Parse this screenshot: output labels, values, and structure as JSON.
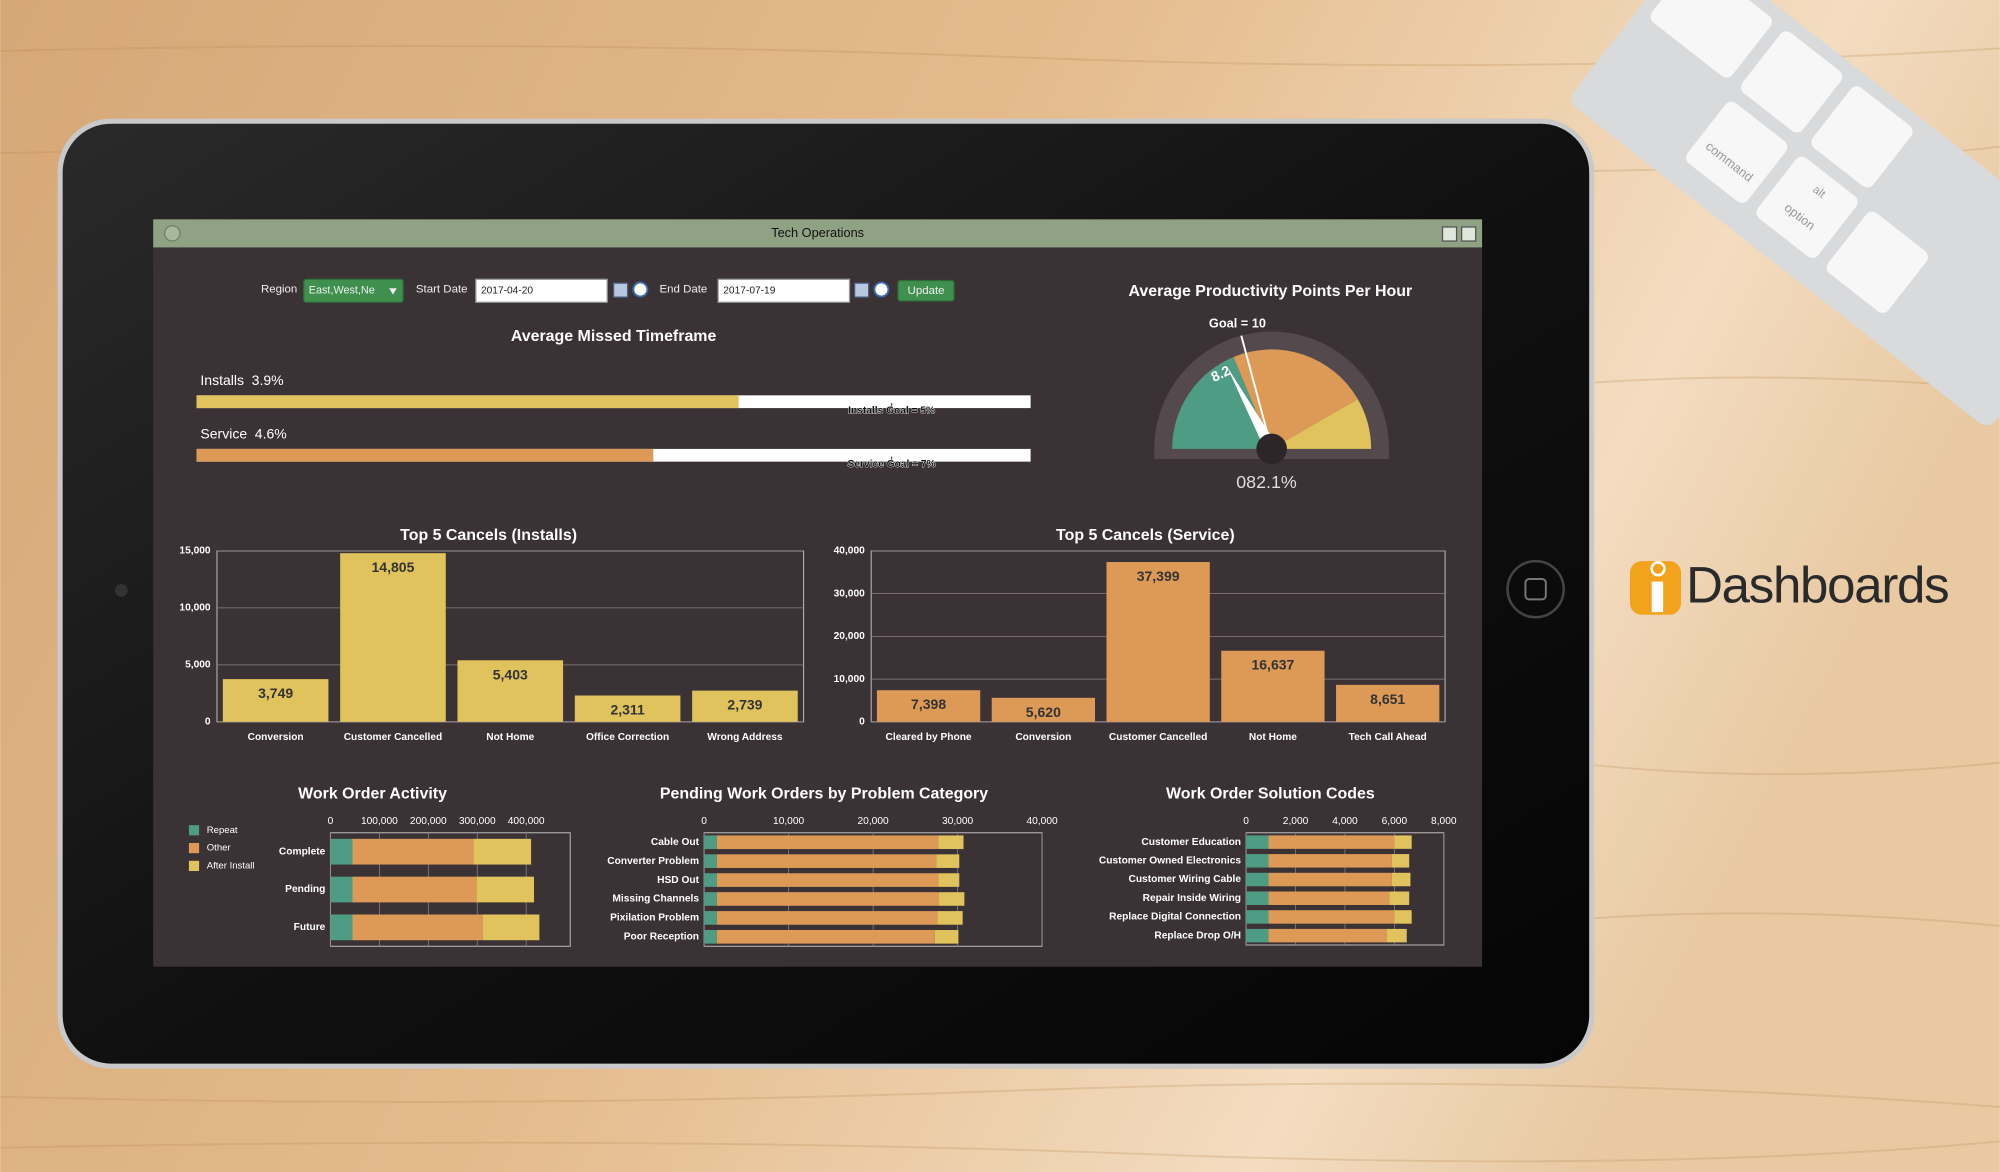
{
  "window": {
    "title": "Tech Operations"
  },
  "filters": {
    "region_label": "Region",
    "region_value": "East,West,Ne",
    "start_label": "Start Date",
    "start_value": "2017-04-20",
    "end_label": "End Date",
    "end_value": "2017-07-19",
    "button": "Update"
  },
  "brand": {
    "name": "Dashboards"
  },
  "keyboard": {
    "keys": [
      "command",
      "option",
      "alt"
    ]
  },
  "chart_data": [
    {
      "type": "bullet",
      "title": "Average Missed Timeframe",
      "categories": [
        "Installs",
        "Service"
      ],
      "values": [
        3.9,
        4.6
      ],
      "value_labels": [
        "3.9%",
        "4.6%"
      ],
      "goals": [
        5,
        7
      ],
      "goal_labels": [
        "Installs Goal = 5%",
        "Service Goal = 7%"
      ],
      "xlims": [
        [
          0,
          6
        ],
        [
          0,
          8.4
        ]
      ],
      "colors": [
        "#e0c35c",
        "#dc9a56"
      ]
    },
    {
      "type": "gauge",
      "title": "Average Productivity Points Per Hour",
      "value": 8.2,
      "goal": 10,
      "goal_label": "Goal = 10",
      "readout": "082.1%",
      "ylim": [
        0,
        24
      ],
      "bands": [
        {
          "to": 9,
          "color": "#4f9c84"
        },
        {
          "to": 20,
          "color": "#dc9a56"
        },
        {
          "to": 24,
          "color": "#e0c35c"
        }
      ]
    },
    {
      "type": "bar",
      "title": "Top 5 Cancels (Installs)",
      "categories": [
        "Conversion",
        "Customer Cancelled",
        "Not Home",
        "Office Correction",
        "Wrong Address"
      ],
      "values": [
        3749,
        14805,
        5403,
        2311,
        2739
      ],
      "value_labels": [
        "3,749",
        "14,805",
        "5,403",
        "2,311",
        "2,739"
      ],
      "color": "#e0c35c",
      "ylim": [
        0,
        15000
      ],
      "yticks": [
        0,
        {
          "value": 5000,
          "label": "5,000"
        },
        {
          "value": 10000,
          "label": "10,000"
        },
        {
          "value": 15000,
          "label": "15,000"
        }
      ],
      "grid": true
    },
    {
      "type": "bar",
      "title": "Top 5 Cancels (Service)",
      "categories": [
        "Cleared by Phone",
        "Conversion",
        "Customer Cancelled",
        "Not Home",
        "Tech Call Ahead"
      ],
      "values": [
        7398,
        5620,
        37399,
        16637,
        8651
      ],
      "value_labels": [
        "7,398",
        "5,620",
        "37,399",
        "16,637",
        "8,651"
      ],
      "color": "#dc9a56",
      "ylim": [
        0,
        40000
      ],
      "yticks": [
        0,
        {
          "value": 10000,
          "label": "10,000"
        },
        {
          "value": 20000,
          "label": "20,000"
        },
        {
          "value": 30000,
          "label": "30,000"
        },
        {
          "value": 40000,
          "label": "40,000"
        }
      ],
      "grid": true
    },
    {
      "type": "hbar_stacked",
      "title": "Work Order Activity",
      "categories": [
        "Complete",
        "Pending",
        "Future"
      ],
      "series": [
        {
          "name": "Repeat",
          "color": "#4f9c84",
          "values": [
            45000,
            45000,
            45000
          ]
        },
        {
          "name": "Other",
          "color": "#dc9a56",
          "values": [
            247000,
            253000,
            266000
          ]
        },
        {
          "name": "After Install",
          "color": "#e0c35c",
          "values": [
            118000,
            118000,
            116000
          ]
        }
      ],
      "xlim": [
        0,
        490000
      ],
      "xticks": [
        0,
        {
          "value": 100000,
          "label": "100,000"
        },
        {
          "value": 200000,
          "label": "200,000"
        },
        {
          "value": 300000,
          "label": "300,000"
        },
        {
          "value": 400000,
          "label": "400,000"
        }
      ],
      "grid": true,
      "legend": "left"
    },
    {
      "type": "hbar_stacked",
      "title": "Pending Work Orders by Problem Category",
      "categories": [
        "Cable Out",
        "Converter Problem",
        "HSD Out",
        "Missing Channels",
        "Pixilation Problem",
        "Poor Reception"
      ],
      "series": [
        {
          "name": "Repeat",
          "color": "#4f9c84",
          "values": [
            1500,
            1500,
            1500,
            1500,
            1500,
            1500
          ]
        },
        {
          "name": "Other",
          "color": "#dc9a56",
          "values": [
            26200,
            26000,
            26200,
            26300,
            26100,
            25800
          ]
        },
        {
          "name": "After Install",
          "color": "#e0c35c",
          "values": [
            3000,
            2700,
            2500,
            3000,
            3000,
            2800
          ]
        }
      ],
      "xlim": [
        0,
        40000
      ],
      "xticks": [
        0,
        {
          "value": 10000,
          "label": "10,000"
        },
        {
          "value": 20000,
          "label": "20,000"
        },
        {
          "value": 30000,
          "label": "30,000"
        },
        {
          "value": 40000,
          "label": "40,000"
        }
      ],
      "grid": true
    },
    {
      "type": "hbar_stacked",
      "title": "Work Order Solution Codes",
      "categories": [
        "Customer Education",
        "Customer Owned Electronics",
        "Customer Wiring Cable",
        "Repair Inside Wiring",
        "Replace Digital Connection",
        "Replace Drop O/H"
      ],
      "series": [
        {
          "name": "Repeat",
          "color": "#4f9c84",
          "values": [
            900,
            900,
            900,
            900,
            900,
            900
          ]
        },
        {
          "name": "Other",
          "color": "#dc9a56",
          "values": [
            5100,
            5000,
            5000,
            4900,
            5100,
            4800
          ]
        },
        {
          "name": "After Install",
          "color": "#e0c35c",
          "values": [
            700,
            700,
            750,
            800,
            700,
            800
          ]
        }
      ],
      "xlim": [
        0,
        8000
      ],
      "xticks": [
        0,
        {
          "value": 2000,
          "label": "2,000"
        },
        {
          "value": 4000,
          "label": "4,000"
        },
        {
          "value": 6000,
          "label": "6,000"
        },
        {
          "value": 8000,
          "label": "8,000"
        }
      ],
      "grid": true
    }
  ]
}
